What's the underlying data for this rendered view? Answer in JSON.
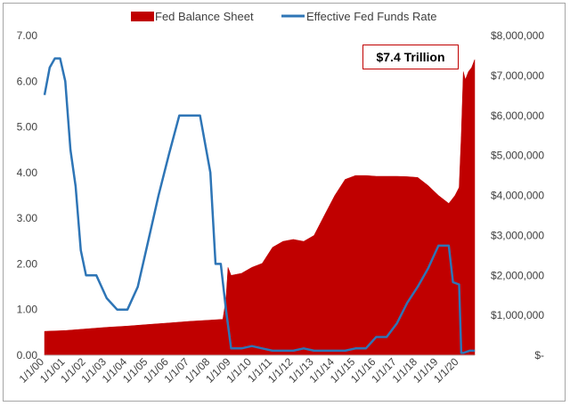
{
  "chart_data": {
    "type": "area+line",
    "x_tick_labels": [
      "1/1/00",
      "1/1/01",
      "1/1/02",
      "1/1/03",
      "1/1/04",
      "1/1/05",
      "1/1/06",
      "1/1/07",
      "1/1/08",
      "1/1/09",
      "1/1/10",
      "1/1/11",
      "1/1/12",
      "1/1/13",
      "1/1/14",
      "1/1/15",
      "1/1/16",
      "1/1/17",
      "1/1/18",
      "1/1/19",
      "1/1/20"
    ],
    "x_range": [
      2000.0,
      2020.75
    ],
    "y_left": {
      "range": [
        0,
        7
      ],
      "tick_labels": [
        "0.00",
        "1.00",
        "2.00",
        "3.00",
        "4.00",
        "5.00",
        "6.00",
        "7.00"
      ]
    },
    "y_right": {
      "range": [
        0,
        8000000
      ],
      "tick_labels": [
        "$-",
        "$1,000,000",
        "$2,000,000",
        "$3,000,000",
        "$4,000,000",
        "$5,000,000",
        "$6,000,000",
        "$7,000,000",
        "$8,000,000"
      ]
    },
    "legend_position": "top",
    "grid": false,
    "annotation": "$7.4 Trillion",
    "series": [
      {
        "name": "Fed Balance Sheet",
        "type": "area",
        "axis": "right",
        "color": "#c00000",
        "x": [
          2000.0,
          2001.0,
          2002.0,
          2003.0,
          2004.0,
          2005.0,
          2006.0,
          2007.0,
          2008.0,
          2008.6,
          2008.75,
          2008.85,
          2009.0,
          2009.5,
          2010.0,
          2010.5,
          2011.0,
          2011.5,
          2012.0,
          2012.5,
          2013.0,
          2013.5,
          2014.0,
          2014.5,
          2015.0,
          2015.5,
          2016.0,
          2016.5,
          2017.0,
          2017.5,
          2018.0,
          2018.5,
          2019.0,
          2019.5,
          2019.8,
          2020.0,
          2020.1,
          2020.2,
          2020.3,
          2020.45,
          2020.6,
          2020.75
        ],
        "y": [
          600000,
          620000,
          660000,
          700000,
          730000,
          770000,
          810000,
          850000,
          880000,
          900000,
          1400000,
          2200000,
          2000000,
          2050000,
          2200000,
          2300000,
          2700000,
          2850000,
          2900000,
          2850000,
          3000000,
          3500000,
          4000000,
          4400000,
          4500000,
          4500000,
          4480000,
          4480000,
          4480000,
          4470000,
          4450000,
          4250000,
          4000000,
          3800000,
          4000000,
          4200000,
          5500000,
          7100000,
          6900000,
          7100000,
          7200000,
          7400000
        ]
      },
      {
        "name": "Effective Fed Funds Rate",
        "type": "line",
        "axis": "left",
        "color": "#2e75b6",
        "x": [
          2000.0,
          2000.25,
          2000.5,
          2000.75,
          2001.0,
          2001.25,
          2001.5,
          2001.75,
          2002.0,
          2002.5,
          2003.0,
          2003.5,
          2004.0,
          2004.5,
          2005.0,
          2005.5,
          2006.0,
          2006.5,
          2007.0,
          2007.5,
          2008.0,
          2008.25,
          2008.5,
          2008.75,
          2009.0,
          2009.5,
          2010.0,
          2010.5,
          2011.0,
          2011.5,
          2012.0,
          2012.5,
          2013.0,
          2013.5,
          2014.0,
          2014.5,
          2015.0,
          2015.5,
          2016.0,
          2016.5,
          2017.0,
          2017.5,
          2018.0,
          2018.5,
          2019.0,
          2019.3,
          2019.5,
          2019.7,
          2020.0,
          2020.1,
          2020.2,
          2020.5,
          2020.75
        ],
        "y": [
          5.7,
          6.3,
          6.5,
          6.5,
          6.0,
          4.5,
          3.7,
          2.3,
          1.75,
          1.75,
          1.25,
          1.0,
          1.0,
          1.5,
          2.5,
          3.5,
          4.4,
          5.25,
          5.25,
          5.25,
          4.0,
          2.0,
          2.0,
          1.0,
          0.15,
          0.15,
          0.2,
          0.15,
          0.1,
          0.1,
          0.1,
          0.15,
          0.1,
          0.1,
          0.1,
          0.1,
          0.15,
          0.15,
          0.4,
          0.4,
          0.7,
          1.15,
          1.5,
          1.9,
          2.4,
          2.4,
          2.4,
          1.6,
          1.55,
          0.05,
          0.05,
          0.1,
          0.1
        ]
      }
    ]
  }
}
